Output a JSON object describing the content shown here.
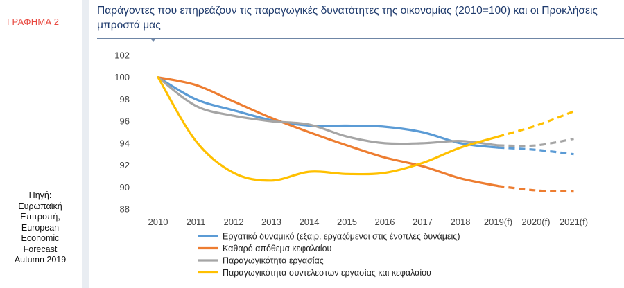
{
  "figure_label": "ΓΡΑΦΗΜΑ 2",
  "source_lines": [
    "Πηγή:",
    "Ευρωπαϊκή",
    "Επιτροπή,",
    "European",
    "Economic",
    "Forecast",
    "Autumn 2019"
  ],
  "chart_data": {
    "type": "line",
    "title": "Παράγοντες που επηρεάζουν τις παραγωγικές δυνατότητες της οικονομίας (2010=100) και οι Προκλήσεις μπροστά μας",
    "categories": [
      "2010",
      "2011",
      "2012",
      "2013",
      "2014",
      "2015",
      "2016",
      "2017",
      "2018",
      "2019(f)",
      "2020(f)",
      "2021(f)"
    ],
    "forecast_from_index": 9,
    "ylim": [
      88,
      102
    ],
    "yticks": [
      88,
      90,
      92,
      94,
      96,
      98,
      100,
      102
    ],
    "grid": false,
    "legend_position": "bottom",
    "series": [
      {
        "name": "Εργατικό δυναμικό (εξαιρ. εργαζόμενοι στις ένοπλες δυνάμεις)",
        "color": "#5b9bd5",
        "values": [
          100,
          98.0,
          97.0,
          96.1,
          95.6,
          95.6,
          95.5,
          95.0,
          94.0,
          93.6,
          93.4,
          93.0
        ]
      },
      {
        "name": "Καθαρό απόθεμα κεφαλαίου",
        "color": "#ed7d31",
        "values": [
          100,
          99.3,
          97.8,
          96.3,
          95.0,
          93.8,
          92.7,
          91.9,
          90.8,
          90.1,
          89.7,
          89.6
        ]
      },
      {
        "name": "Παραγωγικότητα εργασίας",
        "color": "#a5a5a5",
        "values": [
          100,
          97.4,
          96.5,
          96.0,
          95.7,
          94.6,
          94.0,
          94.0,
          94.2,
          93.8,
          93.8,
          94.4
        ]
      },
      {
        "name": "Παραγωγικότητα συντελεστων εργασίας και κεφαλαίου",
        "color": "#ffc000",
        "values": [
          100,
          94.2,
          91.3,
          90.6,
          91.4,
          91.2,
          91.3,
          92.2,
          93.6,
          94.6,
          95.6,
          96.9
        ]
      }
    ]
  }
}
